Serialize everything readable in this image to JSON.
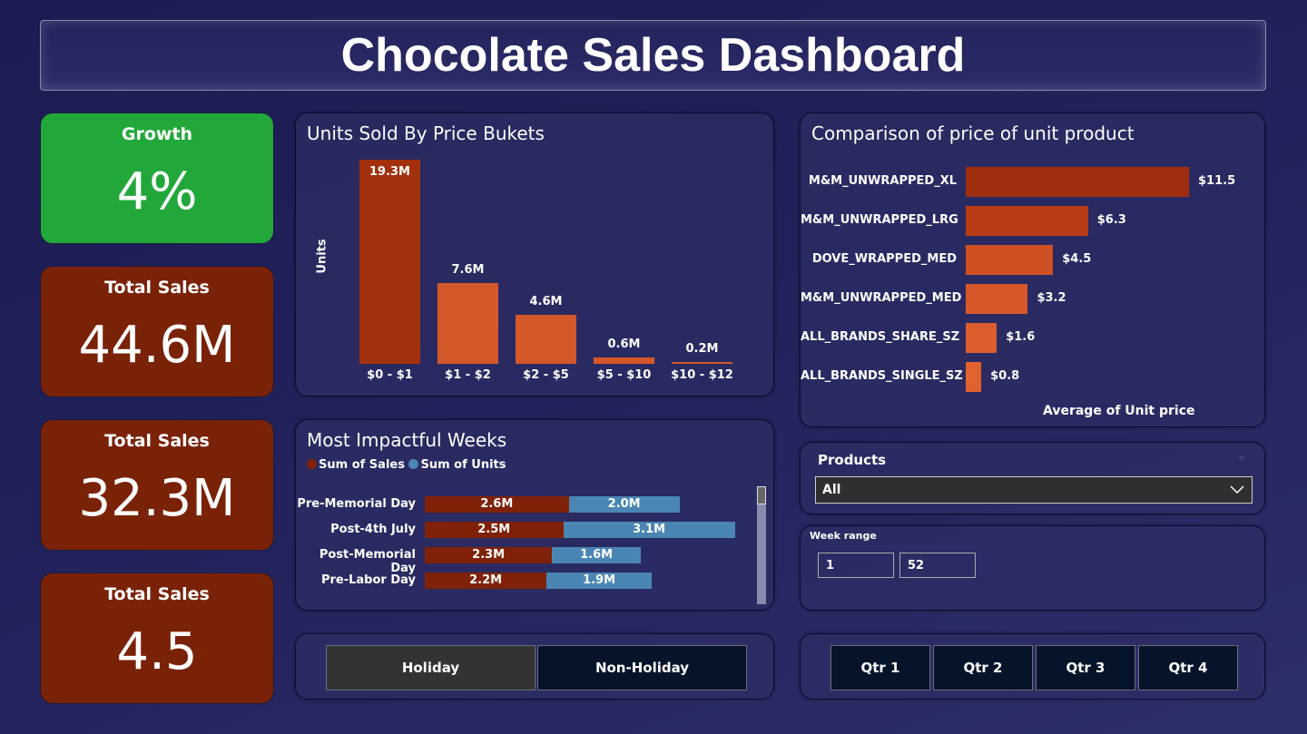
{
  "header": {
    "title": "Chocolate Sales Dashboard"
  },
  "kpis": [
    {
      "label": "Growth",
      "value": "4%",
      "color": "#22a83a"
    },
    {
      "label": "Total Sales",
      "value": "44.6M",
      "color": "#7a2208"
    },
    {
      "label": "Total Sales",
      "value": "32.3M",
      "color": "#7a2208"
    },
    {
      "label": "Total Sales",
      "value": "4.5",
      "color": "#7a2208"
    }
  ],
  "chart_data": [
    {
      "type": "bar",
      "title": "Units Sold By Price Bukets",
      "ylabel": "Units",
      "categories": [
        "$0 - $1",
        "$1 - $2",
        "$2 - $5",
        "$5 - $10",
        "$10 - $12"
      ],
      "values": [
        19.3,
        7.6,
        4.6,
        0.6,
        0.2
      ],
      "labels": [
        "19.3M",
        "7.6M",
        "4.6M",
        "0.6M",
        "0.2M"
      ],
      "colors": [
        "#a3300c",
        "#d4582a",
        "#d4582a",
        "#d4582a",
        "#d4582a"
      ]
    },
    {
      "type": "bar",
      "orientation": "horizontal",
      "title": "Comparison of price of unit product",
      "xlabel": "Average of Unit price",
      "categories": [
        "M&M_UNWRAPPED_XL",
        "M&M_UNWRAPPED_LRG",
        "DOVE_WRAPPED_MED",
        "M&M_UNWRAPPED_MED",
        "ALL_BRANDS_SHARE_SZ",
        "ALL_BRANDS_SINGLE_SZ"
      ],
      "values": [
        11.5,
        6.3,
        4.5,
        3.2,
        1.6,
        0.8
      ],
      "labels": [
        "$11.5",
        "$6.3",
        "$4.5",
        "$3.2",
        "$1.6",
        "$0.8"
      ],
      "colors": [
        "#a02e0e",
        "#b83c16",
        "#cf5022",
        "#d6582a",
        "#dc5e2e",
        "#e0622f"
      ]
    },
    {
      "type": "bar",
      "orientation": "horizontal",
      "stacked": true,
      "title": "Most Impactful Weeks",
      "categories": [
        "Pre-Memorial Day",
        "Post-4th July",
        "Post-Memorial Day",
        "Pre-Labor Day"
      ],
      "series": [
        {
          "name": "Sum of Sales",
          "values": [
            2.6,
            2.5,
            2.3,
            2.2
          ],
          "labels": [
            "2.6M",
            "2.5M",
            "2.3M",
            "2.2M"
          ],
          "color": "#7f2209"
        },
        {
          "name": "Sum of Units",
          "values": [
            2.0,
            3.1,
            1.6,
            1.9
          ],
          "labels": [
            "2.0M",
            "3.1M",
            "1.6M",
            "1.9M"
          ],
          "color": "#4a86b4"
        }
      ]
    }
  ],
  "filters": {
    "products_label": "Products",
    "products_value": "All",
    "week_label": "Week range",
    "week_min": "1",
    "week_max": "52"
  },
  "holiday_buttons": [
    "Holiday",
    "Non-Holiday"
  ],
  "quarter_buttons": [
    "Qtr 1",
    "Qtr 2",
    "Qtr 3",
    "Qtr 4"
  ]
}
